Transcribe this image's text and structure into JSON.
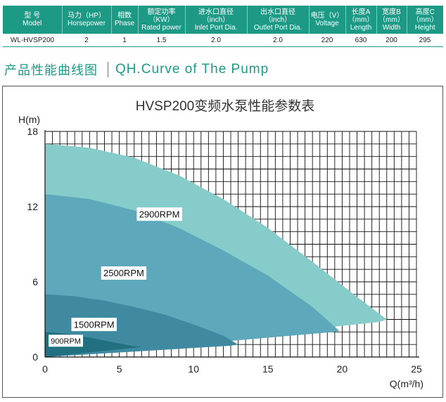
{
  "spec_table": {
    "headers": [
      "型 号\nModel",
      "马力（HP）\nHorsepower",
      "相数\nPhase",
      "额定功率\n（KW）\nRated power",
      "进水口直径\n（inch）\nInlet Port Dia.",
      "出水口直径\n（inch）\nOutlet Port Dia.",
      "电压（V）\nVoltage",
      "长度A\n（mm）\nLength",
      "宽度B\n（mm）\nWidth",
      "高度C\n（mm）\nHeight"
    ],
    "row": [
      "WL-HVSP200",
      "2",
      "1",
      "1.5",
      "2.0",
      "2.0",
      "220",
      "630",
      "200",
      "295"
    ]
  },
  "heading": {
    "cn": "产品性能曲线图",
    "en": "QH.Curve of The Pump"
  },
  "colors": {
    "accent": "#1d9a86",
    "curve_2900": "#86cccb",
    "curve_2500": "#5da8bb",
    "curve_1500": "#3f8aa0",
    "curve_900": "#21707f"
  },
  "chart_data": {
    "type": "area",
    "title": "HVSP200变频水泵性能参数表",
    "xlabel": "Q(m³/h)",
    "ylabel": "H(m)",
    "xlim": [
      0,
      25
    ],
    "ylim": [
      0,
      18
    ],
    "xticks": [
      0,
      5,
      10,
      15,
      20,
      25
    ],
    "yticks": [
      0,
      6,
      12,
      18
    ],
    "grid": true,
    "series": [
      {
        "name": "2900RPM",
        "color": "#86cccb",
        "x": [
          0,
          3,
          6,
          9,
          12,
          15,
          18,
          21,
          23,
          22.5
        ],
        "y": [
          17.0,
          16.7,
          15.9,
          14.5,
          12.6,
          10.3,
          7.6,
          4.8,
          3.0,
          2.8
        ]
      },
      {
        "name": "2500RPM",
        "color": "#5da8bb",
        "x": [
          0,
          3,
          6,
          9,
          12,
          15,
          18,
          19.8,
          19.5
        ],
        "y": [
          13.0,
          12.6,
          11.7,
          10.3,
          8.5,
          6.5,
          4.0,
          2.1,
          2.0
        ]
      },
      {
        "name": "1500RPM",
        "color": "#3f8aa0",
        "x": [
          0,
          2,
          4,
          6,
          8,
          10,
          12,
          13,
          12.5
        ],
        "y": [
          5.0,
          4.85,
          4.5,
          4.0,
          3.4,
          2.6,
          1.7,
          1.0,
          0.9
        ]
      },
      {
        "name": "900RPM",
        "color": "#21707f",
        "x": [
          0,
          1.5,
          3,
          4.5,
          6,
          6.5
        ],
        "y": [
          2.0,
          1.85,
          1.55,
          1.2,
          0.85,
          0.8
        ]
      }
    ],
    "series_labels": [
      "2900RPM",
      "2500RPM",
      "1500RPM",
      "900RPM"
    ]
  }
}
